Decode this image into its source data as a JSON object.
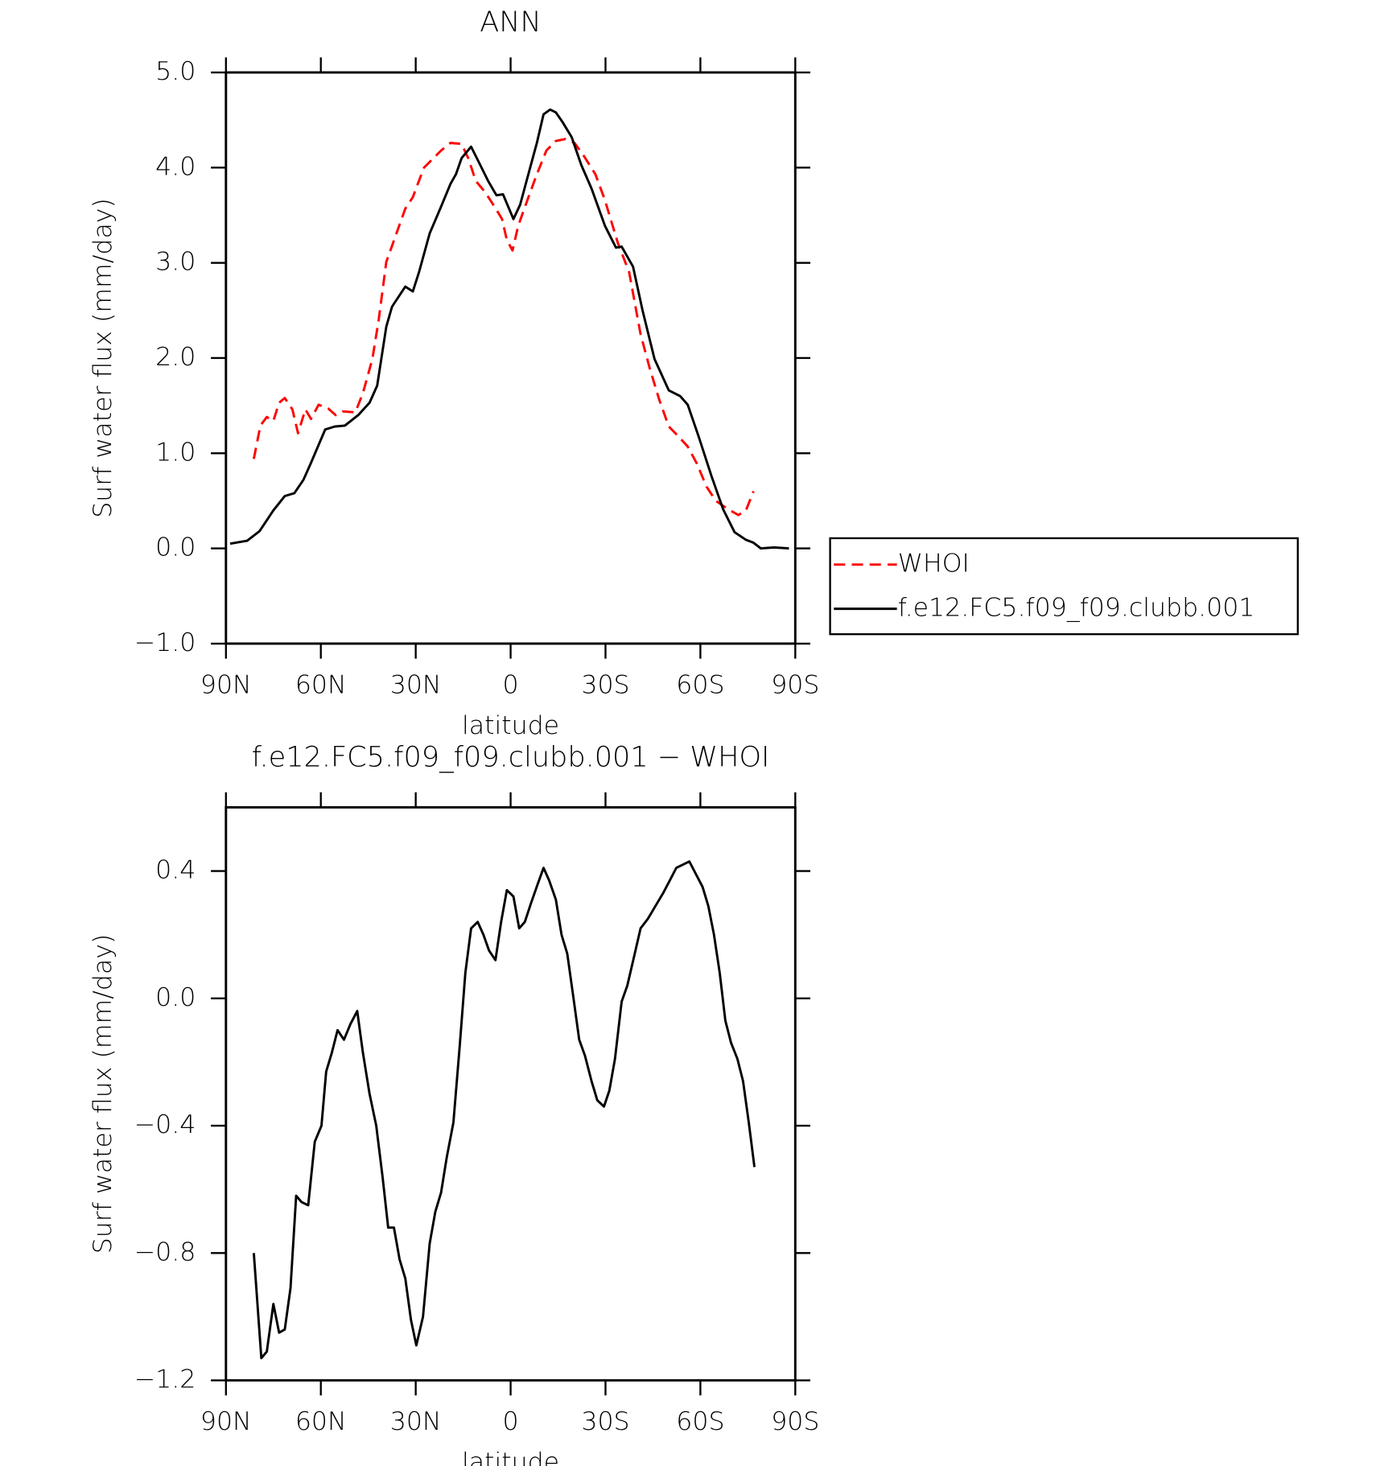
{
  "chart_data": [
    {
      "type": "line",
      "title": "ANN",
      "ylabel": "Surf water flux (mm/day)",
      "xlabel": "latitude",
      "xlim": [
        90,
        -90
      ],
      "xticks": [
        {
          "value": 90,
          "label": "90N"
        },
        {
          "value": 60,
          "label": "60N"
        },
        {
          "value": 30,
          "label": "30N"
        },
        0,
        {
          "value": -30,
          "label": "30S"
        },
        {
          "value": -60,
          "label": "60S"
        },
        {
          "value": -90,
          "label": "90S"
        }
      ],
      "ylim": [
        -1,
        5
      ],
      "yticks": [
        {
          "value": -1,
          "label": "−1.0"
        },
        {
          "value": 0,
          "label": "0.0"
        },
        {
          "value": 1,
          "label": "1.0"
        },
        {
          "value": 2,
          "label": "2.0"
        },
        {
          "value": 3,
          "label": "3.0"
        },
        {
          "value": 4,
          "label": "4.0"
        },
        {
          "value": 5,
          "label": "5.0"
        }
      ],
      "legend": "right",
      "series": [
        {
          "name": "WHOI",
          "color": "#ff0000",
          "linestyle": "dashed",
          "x": [
            81.2,
            79.1,
            77.1,
            75,
            73.2,
            71.4,
            69,
            67.2,
            64.9,
            63.1,
            60.7,
            57.7,
            55.3,
            53,
            49.1,
            46.7,
            43.7,
            41.7,
            39.3,
            36.3,
            33.3,
            30.9,
            27.4,
            24.4,
            22,
            19,
            15.5,
            13.4,
            11,
            8,
            5.1,
            2.7,
            1.2,
            -0.6,
            -2.4,
            -5.4,
            -8.3,
            -11.3,
            -14.3,
            -17.3,
            -20.2,
            -23.2,
            -26.8,
            -29.8,
            -33.9,
            -37.5,
            -41.1,
            -44,
            -47,
            -50,
            -53,
            -56,
            -58.9,
            -61.9,
            -64.9,
            -68.4,
            -72,
            -74.4,
            -76.8
          ],
          "values": [
            0.94,
            1.29,
            1.38,
            1.34,
            1.53,
            1.58,
            1.46,
            1.21,
            1.46,
            1.36,
            1.51,
            1.47,
            1.4,
            1.44,
            1.43,
            1.63,
            1.99,
            2.4,
            3.01,
            3.29,
            3.57,
            3.69,
            4.0,
            4.1,
            4.18,
            4.26,
            4.25,
            4.1,
            3.86,
            3.74,
            3.59,
            3.46,
            3.24,
            3.13,
            3.39,
            3.67,
            3.93,
            4.18,
            4.28,
            4.3,
            4.26,
            4.12,
            3.93,
            3.66,
            3.21,
            2.9,
            2.25,
            1.89,
            1.56,
            1.28,
            1.18,
            1.07,
            0.89,
            0.65,
            0.5,
            0.42,
            0.35,
            0.4,
            0.6
          ]
        },
        {
          "name": "f.e12.FC5.f09_f09.clubb.001",
          "color": "#000000",
          "linestyle": "solid",
          "x": [
            88.7,
            83.3,
            79.4,
            75,
            71.4,
            68.4,
            65.5,
            63.1,
            58.6,
            55.6,
            52.4,
            48.2,
            44.6,
            42.2,
            39.3,
            37.5,
            33.3,
            30.9,
            28.9,
            25.6,
            22,
            19,
            17.3,
            15.5,
            12.5,
            10.1,
            7.1,
            4.5,
            2.4,
            -0.9,
            -3,
            -6,
            -8.3,
            -10.4,
            -12.5,
            -14.3,
            -16.4,
            -19.3,
            -22.3,
            -25.6,
            -29.8,
            -33.3,
            -35.1,
            -38.7,
            -41.7,
            -45.5,
            -50,
            -53.6,
            -56,
            -59.5,
            -63.4,
            -67.2,
            -70.8,
            -74.4,
            -76.8,
            -79.1,
            -83.3,
            -88
          ],
          "values": [
            0.05,
            0.08,
            0.18,
            0.4,
            0.55,
            0.58,
            0.72,
            0.9,
            1.25,
            1.28,
            1.29,
            1.4,
            1.53,
            1.71,
            2.33,
            2.54,
            2.75,
            2.7,
            2.91,
            3.31,
            3.59,
            3.83,
            3.93,
            4.1,
            4.22,
            4.06,
            3.86,
            3.71,
            3.72,
            3.46,
            3.61,
            3.98,
            4.26,
            4.56,
            4.61,
            4.58,
            4.48,
            4.32,
            4.03,
            3.78,
            3.39,
            3.16,
            3.17,
            2.96,
            2.5,
            1.99,
            1.66,
            1.6,
            1.51,
            1.17,
            0.77,
            0.41,
            0.17,
            0.09,
            0.06,
            0.0,
            0.01,
            0.0
          ]
        }
      ]
    },
    {
      "type": "line",
      "title": "f.e12.FC5.f09_f09.clubb.001 − WHOI",
      "ylabel": "Surf water flux (mm/day)",
      "xlabel": "latitude",
      "xlim": [
        90,
        -90
      ],
      "xticks": [
        {
          "value": 90,
          "label": "90N"
        },
        {
          "value": 60,
          "label": "60N"
        },
        {
          "value": 30,
          "label": "30N"
        },
        0,
        {
          "value": -30,
          "label": "30S"
        },
        {
          "value": -60,
          "label": "60S"
        },
        {
          "value": -90,
          "label": "90S"
        }
      ],
      "ylim": [
        -1.2,
        0.6
      ],
      "yticks": [
        {
          "value": -1.2,
          "label": "−1.2"
        },
        {
          "value": -0.8,
          "label": "−0.8"
        },
        {
          "value": -0.4,
          "label": "−0.4"
        },
        {
          "value": 0,
          "label": "0.0"
        },
        0.4
      ],
      "series": [
        {
          "color": "#000000",
          "linestyle": "solid",
          "x": [
            81.2,
            78.8,
            77.1,
            75,
            73.2,
            71.4,
            69.6,
            67.8,
            66.1,
            64,
            61.9,
            59.8,
            58.3,
            56.5,
            54.7,
            52.7,
            50.6,
            48.5,
            46.7,
            44.6,
            42.5,
            40.5,
            38.7,
            36.9,
            35.1,
            33.3,
            31.5,
            29.8,
            27.7,
            25.6,
            23.8,
            22,
            20.2,
            18.1,
            16.1,
            14.3,
            12.5,
            10.4,
            8.6,
            6.8,
            4.8,
            3,
            1.2,
            -0.9,
            -2.7,
            -4.5,
            -6.5,
            -8.6,
            -10.4,
            -12.2,
            -14.3,
            -16.1,
            -17.9,
            -19.6,
            -21.7,
            -23.5,
            -25.6,
            -27.4,
            -29.5,
            -31.2,
            -33,
            -35.1,
            -36.9,
            -39,
            -41.1,
            -43.4,
            -45.8,
            -48.2,
            -50.3,
            -52.4,
            -54.5,
            -56.5,
            -58.6,
            -60.7,
            -62.5,
            -64.3,
            -66.1,
            -67.9,
            -69.7,
            -71.7,
            -73.5,
            -75.3,
            -77.1
          ],
          "values": [
            -0.8,
            -1.13,
            -1.11,
            -0.96,
            -1.05,
            -1.04,
            -0.91,
            -0.62,
            -0.64,
            -0.65,
            -0.45,
            -0.4,
            -0.23,
            -0.17,
            -0.1,
            -0.13,
            -0.08,
            -0.04,
            -0.17,
            -0.3,
            -0.4,
            -0.56,
            -0.72,
            -0.72,
            -0.82,
            -0.88,
            -1.01,
            -1.09,
            -1.0,
            -0.77,
            -0.67,
            -0.61,
            -0.5,
            -0.39,
            -0.15,
            0.08,
            0.22,
            0.24,
            0.2,
            0.15,
            0.12,
            0.24,
            0.34,
            0.32,
            0.22,
            0.24,
            0.3,
            0.36,
            0.41,
            0.37,
            0.31,
            0.2,
            0.14,
            0.02,
            -0.13,
            -0.18,
            -0.26,
            -0.32,
            -0.34,
            -0.29,
            -0.19,
            -0.01,
            0.04,
            0.13,
            0.22,
            0.25,
            0.29,
            0.33,
            0.37,
            0.41,
            0.42,
            0.43,
            0.39,
            0.35,
            0.29,
            0.2,
            0.08,
            -0.07,
            -0.14,
            -0.19,
            -0.26,
            -0.39,
            -0.53
          ]
        }
      ]
    }
  ]
}
